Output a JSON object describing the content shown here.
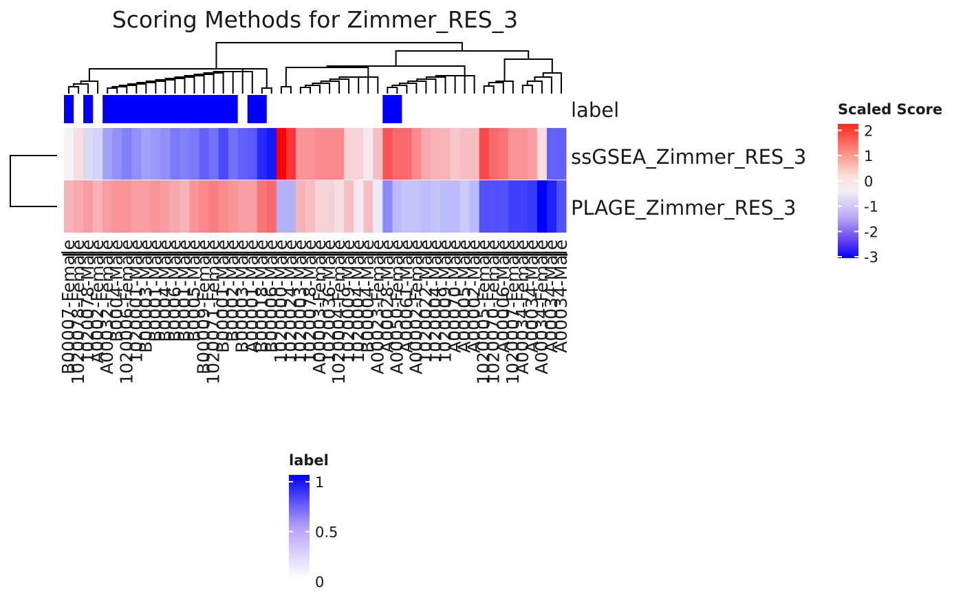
{
  "chart_data": {
    "type": "heatmap",
    "title": "Scoring Methods for Zimmer_RES_3",
    "rows": [
      "label",
      "ssGSEA_Zimmer_RES_3",
      "PLAGE_Zimmer_RES_3"
    ],
    "columns": [
      "B00007-Female",
      "1020078-Female",
      "1020078-Male",
      "A0002-Female",
      "A00032-Female",
      "B0004-Male",
      "1020006-Female",
      "1020001-Male",
      "B00003-Male",
      "B0001-Male",
      "B0004-Male",
      "B0006-Male",
      "B0001-Male",
      "B0005-Male",
      "B00009-Female",
      "1020071-Female",
      "B00001-Male",
      "B0002-Male",
      "B00003-Male",
      "A00001-Male",
      "B00018-Male",
      "B00006-Male",
      "1020000-Male",
      "1020024-Male",
      "1020003-Male",
      "1020078-Male",
      "A00003-Female",
      "1020036-Male",
      "1020004-Female",
      "1020009-Male",
      "1020004-Male",
      "B00004-Male",
      "A00023-Female",
      "A00028-Male",
      "A00050-Female",
      "A00061-Male",
      "A00002-Female",
      "1020022-Male",
      "1020004-Male",
      "1020009-Male",
      "A00070-Male",
      "A00005-Male",
      "A00002-Male",
      "1020005-Female",
      "1020070-Female",
      "A00006-Male",
      "1020007-Female",
      "A00034-Female",
      "A00034-Male",
      "A00034-Female",
      "A00034-Male",
      "A00034-Male"
    ],
    "label": [
      1,
      0,
      1,
      0,
      1,
      1,
      1,
      1,
      1,
      1,
      1,
      1,
      1,
      1,
      1,
      1,
      1,
      1,
      0,
      1,
      1,
      0,
      0,
      0,
      0,
      0,
      0,
      0,
      0,
      0,
      0,
      0,
      0,
      1,
      1,
      0,
      0,
      0,
      0,
      0,
      0,
      0,
      0,
      0,
      0,
      0,
      0,
      0,
      0,
      0,
      0,
      0
    ],
    "ssGSEA_Zimmer_RES_3": [
      0.0,
      0.2,
      -0.3,
      -0.4,
      -1.0,
      -1.2,
      -1.4,
      -1.2,
      -1.0,
      -1.1,
      -1.2,
      -1.5,
      -1.4,
      -1.5,
      -1.8,
      -1.6,
      -2.1,
      -1.6,
      -1.8,
      -1.9,
      -2.5,
      -2.7,
      2.3,
      1.8,
      0.9,
      0.9,
      1.0,
      1.0,
      1.0,
      0.3,
      0.3,
      0.1,
      0.5,
      1.5,
      1.3,
      1.3,
      1.0,
      0.7,
      0.6,
      0.6,
      0.4,
      0.5,
      0.5,
      1.6,
      1.3,
      1.2,
      0.9,
      0.9,
      0.8,
      0.2,
      -1.8,
      -1.8
    ],
    "PLAGE_Zimmer_RES_3": [
      0.6,
      0.7,
      0.8,
      0.6,
      0.8,
      0.9,
      0.9,
      0.8,
      0.8,
      0.9,
      0.8,
      0.7,
      0.6,
      0.9,
      1.0,
      1.1,
      1.0,
      0.9,
      0.8,
      0.8,
      1.2,
      1.3,
      -0.8,
      -0.8,
      0.6,
      0.5,
      0.3,
      0.3,
      0.2,
      0.5,
      0.1,
      0.5,
      -0.1,
      -1.3,
      -0.7,
      -0.6,
      -0.6,
      -0.7,
      -0.6,
      -0.7,
      -0.7,
      -0.5,
      -0.7,
      -2.0,
      -2.0,
      -2.0,
      -2.2,
      -2.2,
      -2.3,
      -3.0,
      -2.6,
      -2.0
    ],
    "scaled_score_legend": {
      "title": "Scaled Score",
      "ticks": [
        2,
        1,
        0,
        -1,
        -2,
        -3
      ],
      "range": [
        -3,
        2.2
      ]
    },
    "label_legend": {
      "title": "label",
      "ticks": [
        1,
        0.5,
        0
      ],
      "range": [
        0,
        1
      ]
    },
    "colors": {
      "high": "#ff0000",
      "mid": "#ffffff",
      "low": "#0000ff",
      "label_on": "#0000ff",
      "label_off": "#ffffff"
    }
  }
}
